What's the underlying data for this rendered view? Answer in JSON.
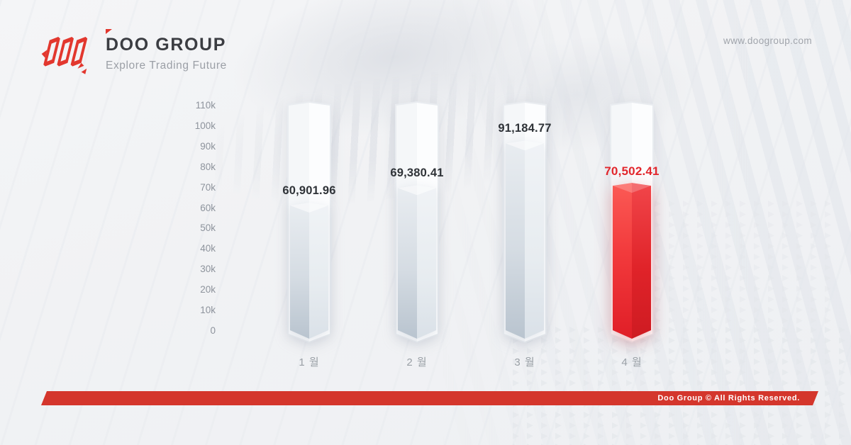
{
  "header": {
    "brand_name": "DOO GROUP",
    "brand_tagline": "Explore Trading Future",
    "website": "www.doogroup.com"
  },
  "footer": {
    "copyright": "Doo Group © All Rights Reserved."
  },
  "chart_data": {
    "type": "bar",
    "categories": [
      "1 월",
      "2 월",
      "3 월",
      "4 월"
    ],
    "values": [
      60901.96,
      69380.41,
      91184.77,
      70502.41
    ],
    "value_labels": [
      "60,901.96",
      "69,380.41",
      "91,184.77",
      "70,502.41"
    ],
    "highlight_index": 3,
    "ylim": [
      0,
      110000
    ],
    "ytick_labels": [
      "110k",
      "100k",
      "90k",
      "80k",
      "70k",
      "60k",
      "50k",
      "40k",
      "30k",
      "20k",
      "10k",
      "0"
    ],
    "grid": false,
    "legend": false,
    "bar_style": "3d-prism-with-full-height-track",
    "colors": {
      "bar_default_light": "#eef1f4",
      "bar_default_dark": "#c2ccd6",
      "bar_highlight": "#e8232a",
      "bar_track": "#ffffff",
      "value_label_default": "#2f3338",
      "value_label_highlight": "#e2262c",
      "axis_text": "#8d939c",
      "footer_bar": "#d4362c",
      "brand_red": "#e2372e"
    }
  }
}
